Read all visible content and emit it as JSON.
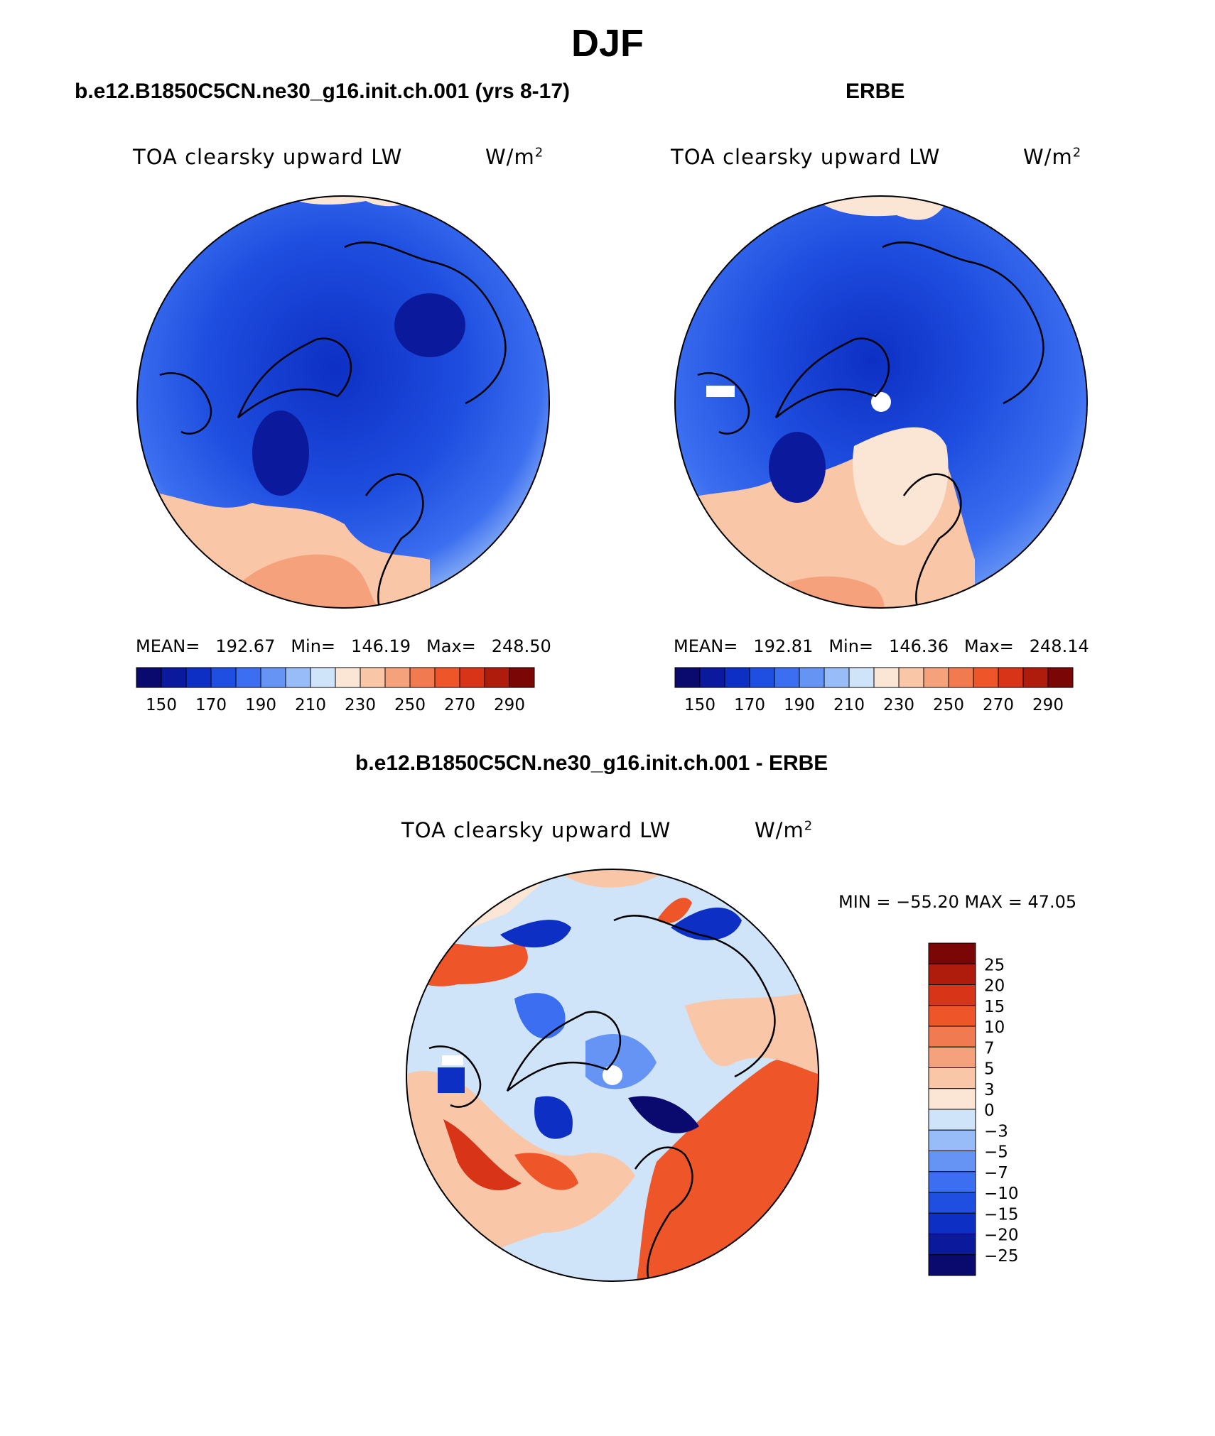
{
  "title": "DJF",
  "panels": [
    {
      "title": "b.e12.B1850C5CN.ne30_g16.init.ch.001 (yrs 8-17)",
      "variable": "TOA clearsky upward LW",
      "units": "W/m",
      "units_sup": "2",
      "stats": {
        "mean_label": "MEAN=",
        "mean": "192.67",
        "min_label": "Min=",
        "min": "146.19",
        "max_label": "Max=",
        "max": "248.50"
      }
    },
    {
      "title": "ERBE",
      "variable": "TOA clearsky upward LW",
      "units": "W/m",
      "units_sup": "2",
      "stats": {
        "mean_label": "MEAN=",
        "mean": "192.81",
        "min_label": "Min=",
        "min": "146.36",
        "max_label": "Max=",
        "max": "248.14"
      }
    },
    {
      "title": "b.e12.B1850C5CN.ne30_g16.init.ch.001 - ERBE",
      "variable": "TOA clearsky upward LW",
      "units": "W/m",
      "units_sup": "2",
      "stats_text": "MIN = −55.20 MAX =   47.05"
    }
  ],
  "colorbar_horizontal": {
    "colors": [
      "#0a0a6e",
      "#0b1a9c",
      "#0d2fc4",
      "#1f4fe0",
      "#3b6ef0",
      "#6694f5",
      "#98bcf7",
      "#cfe3f9",
      "#fbe5d4",
      "#f9c6a8",
      "#f5a27c",
      "#f27a50",
      "#ee5528",
      "#d83418",
      "#b01c0c",
      "#7a0606"
    ],
    "tick_labels": [
      "150",
      "170",
      "190",
      "210",
      "230",
      "250",
      "270",
      "290"
    ]
  },
  "colorbar_vertical": {
    "colors": [
      "#7a0606",
      "#b01c0c",
      "#d83418",
      "#ee5528",
      "#f27a50",
      "#f5a27c",
      "#f9c6a8",
      "#fbe5d4",
      "#cfe3f9",
      "#98bcf7",
      "#6694f5",
      "#3b6ef0",
      "#1f4fe0",
      "#0d2fc4",
      "#0b1a9c",
      "#0a0a6e"
    ],
    "tick_labels": [
      "25",
      "20",
      "15",
      "10",
      "7",
      "5",
      "3",
      "0",
      "−3",
      "−5",
      "−7",
      "−10",
      "−15",
      "−20",
      "−25"
    ]
  }
}
